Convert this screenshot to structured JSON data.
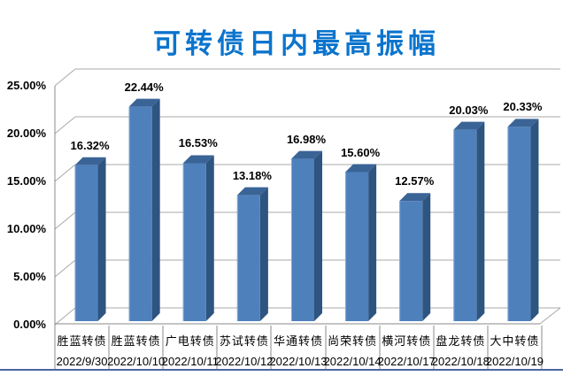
{
  "chart_data": {
    "type": "bar",
    "style": "3d-column",
    "title": "可转债日内最高振幅",
    "xlabel": "",
    "ylabel": "",
    "ylim": [
      0,
      25
    ],
    "yticks": [
      "0.00%",
      "5.00%",
      "10.00%",
      "15.00%",
      "20.00%",
      "25.00%"
    ],
    "grid": true,
    "legend_position": "none",
    "categories": [
      {
        "name": "胜蓝转债",
        "date": "2022/9/30"
      },
      {
        "name": "胜蓝转债",
        "date": "2022/10/10"
      },
      {
        "name": "广电转债",
        "date": "2022/10/11"
      },
      {
        "name": "苏试转债",
        "date": "2022/10/12"
      },
      {
        "name": "华通转债",
        "date": "2022/10/13"
      },
      {
        "name": "尚荣转债",
        "date": "2022/10/14"
      },
      {
        "name": "横河转债",
        "date": "2022/10/17"
      },
      {
        "name": "盘龙转债",
        "date": "2022/10/18"
      },
      {
        "name": "大中转债",
        "date": "2022/10/19"
      }
    ],
    "values": [
      16.32,
      22.44,
      16.53,
      13.18,
      16.98,
      15.6,
      12.57,
      20.03,
      20.33
    ],
    "value_labels": [
      "16.32%",
      "22.44%",
      "16.53%",
      "13.18%",
      "16.98%",
      "15.60%",
      "12.57%",
      "20.03%",
      "20.33%"
    ],
    "colors": {
      "title": "#0b74cd",
      "bar_front": "#4e80bc",
      "bar_side": "#2e5480",
      "bar_top": "#3a6496",
      "bar_edge_highlight": "#7fa5d8",
      "gridline": "#a8a8a8",
      "axis_line": "#8a8a8a",
      "table_line": "#8a8a8a",
      "bottom_rule": "#4a66a0",
      "label_text": "#000000"
    }
  }
}
